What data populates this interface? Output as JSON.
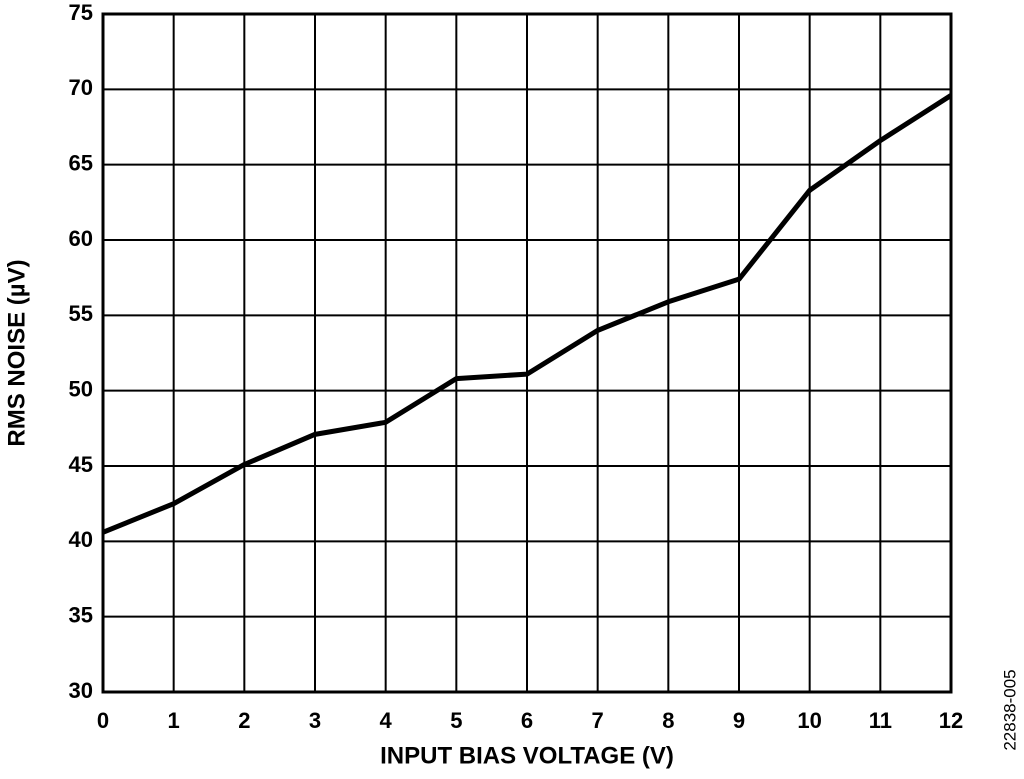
{
  "chart_data": {
    "type": "line",
    "x_label": "INPUT BIAS VOLTAGE (V)",
    "y_label": "RMS NOISE (µV)",
    "figure_id": "22838-005",
    "x": [
      0,
      1,
      2,
      3,
      4,
      5,
      6,
      7,
      8,
      9,
      10,
      11,
      12
    ],
    "series": [
      {
        "color": "#000000",
        "values": [
          40.6,
          42.5,
          45.1,
          47.1,
          47.9,
          50.8,
          51.1,
          54.0,
          55.9,
          57.4,
          63.3,
          66.6,
          69.6
        ]
      }
    ],
    "xlim": [
      0,
      12
    ],
    "xticks": [
      0,
      1,
      2,
      3,
      4,
      5,
      6,
      7,
      8,
      9,
      10,
      11,
      12
    ],
    "ylim": [
      30,
      75
    ],
    "yticks": [
      30,
      35,
      40,
      45,
      50,
      55,
      60,
      65,
      70,
      75
    ],
    "grid": true
  }
}
